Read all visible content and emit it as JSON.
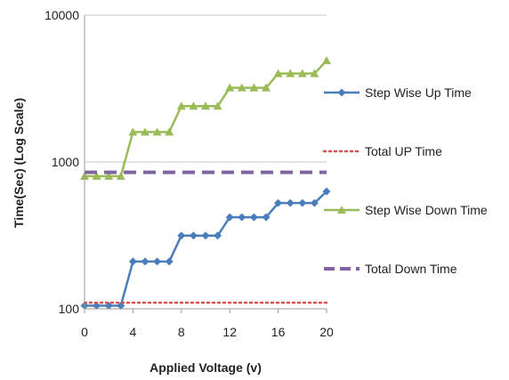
{
  "chart_data": {
    "type": "line",
    "title": "",
    "xlabel": "Applied Voltage (v)",
    "ylabel": "Time(Sec) (Log Scale)",
    "yscale": "log",
    "xlim": [
      0,
      20
    ],
    "ylim": [
      100,
      10000
    ],
    "x_ticks": [
      "0",
      "4",
      "8",
      "12",
      "16",
      "20"
    ],
    "y_ticks": [
      "100",
      "1000",
      "10000"
    ],
    "grid": "horizontal",
    "legend_position": "right",
    "x": [
      0,
      1,
      2,
      3,
      4,
      5,
      6,
      7,
      8,
      9,
      10,
      11,
      12,
      13,
      14,
      15,
      16,
      17,
      18,
      19,
      20
    ],
    "series": [
      {
        "name": "Step Wise Up Time",
        "style": "line-marker",
        "marker": "diamond",
        "color": "#4a7ebb",
        "values": [
          105,
          105,
          105,
          105,
          210,
          210,
          210,
          210,
          315,
          315,
          315,
          315,
          420,
          420,
          420,
          420,
          525,
          525,
          525,
          525,
          630
        ]
      },
      {
        "name": "Total UP Time",
        "style": "dotted",
        "color": "#d9534f",
        "values": [
          110,
          110,
          110,
          110,
          110,
          110,
          110,
          110,
          110,
          110,
          110,
          110,
          110,
          110,
          110,
          110,
          110,
          110,
          110,
          110,
          110
        ]
      },
      {
        "name": "Step Wise Down Time",
        "style": "line-marker",
        "marker": "triangle",
        "color": "#9bbb59",
        "values": [
          800,
          800,
          800,
          800,
          1600,
          1600,
          1600,
          1600,
          2400,
          2400,
          2400,
          2400,
          3200,
          3200,
          3200,
          3200,
          4000,
          4000,
          4000,
          4000,
          4900
        ]
      },
      {
        "name": "Total Down Time",
        "style": "dashed",
        "color": "#8064a2",
        "values": [
          850,
          850,
          850,
          850,
          850,
          850,
          850,
          850,
          850,
          850,
          850,
          850,
          850,
          850,
          850,
          850,
          850,
          850,
          850,
          850,
          850
        ]
      }
    ]
  }
}
